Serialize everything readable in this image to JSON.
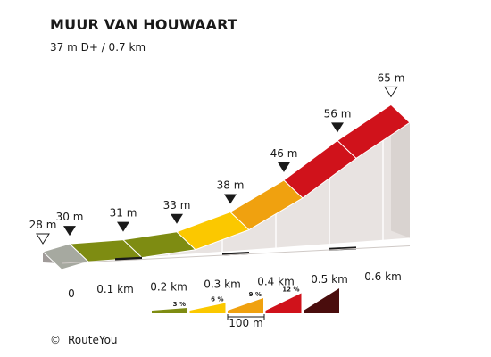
{
  "title": "MUUR VAN HOUWAART",
  "subtitle": "37 m D+ / 0.7 km",
  "footer": {
    "copyright_symbol": "©",
    "brand": "RouteYou"
  },
  "colors": {
    "front_face": "#e8e3e1",
    "left_face": "#a09b99",
    "tick_bar": "#1a1a1a",
    "outline": "#ffffff"
  },
  "chart_data": {
    "type": "area",
    "title": "MUUR VAN HOUWAART",
    "xlabel": "",
    "ylabel": "",
    "x_unit": "km",
    "y_unit": "m",
    "points": [
      {
        "km": 0.0,
        "elev": 28,
        "label": "28 m",
        "marker": "open"
      },
      {
        "km": 0.05,
        "elev": 30,
        "label": "30 m",
        "marker": "filled"
      },
      {
        "km": 0.15,
        "elev": 31,
        "label": "31 m",
        "marker": "filled"
      },
      {
        "km": 0.25,
        "elev": 33,
        "label": "33 m",
        "marker": "filled"
      },
      {
        "km": 0.35,
        "elev": 38,
        "label": "38 m",
        "marker": "filled"
      },
      {
        "km": 0.45,
        "elev": 46,
        "label": "46 m",
        "marker": "filled"
      },
      {
        "km": 0.55,
        "elev": 56,
        "label": "56 m",
        "marker": "filled"
      },
      {
        "km": 0.65,
        "elev": 65,
        "label": "65 m",
        "marker": "open"
      }
    ],
    "segments": [
      {
        "from": 0.05,
        "to": 0.15,
        "color": "#7e8c12",
        "gradient_pct": 1
      },
      {
        "from": 0.15,
        "to": 0.25,
        "color": "#7e8c12",
        "gradient_pct": 2
      },
      {
        "from": 0.25,
        "to": 0.35,
        "color": "#fbc800",
        "gradient_pct": 5
      },
      {
        "from": 0.35,
        "to": 0.45,
        "color": "#f0a10f",
        "gradient_pct": 8
      },
      {
        "from": 0.45,
        "to": 0.55,
        "color": "#d0121b",
        "gradient_pct": 10
      },
      {
        "from": 0.55,
        "to": 0.65,
        "color": "#d0121b",
        "gradient_pct": 9
      }
    ],
    "x_ticks": [
      {
        "km": 0.0,
        "label": "0"
      },
      {
        "km": 0.1,
        "label": "0.1 km"
      },
      {
        "km": 0.2,
        "label": "0.2 km"
      },
      {
        "km": 0.3,
        "label": "0.3 km"
      },
      {
        "km": 0.4,
        "label": "0.4 km"
      },
      {
        "km": 0.5,
        "label": "0.5 km"
      },
      {
        "km": 0.6,
        "label": "0.6 km"
      }
    ],
    "legend": {
      "items": [
        {
          "label": "3 %",
          "color": "#7e8c12"
        },
        {
          "label": "6 %",
          "color": "#fbc800"
        },
        {
          "label": "9 %",
          "color": "#f0a10f"
        },
        {
          "label": "12 %",
          "color": "#d0121b"
        },
        {
          "label": "",
          "color": "#4a0d0d"
        }
      ],
      "scale_label": "100 m"
    }
  }
}
